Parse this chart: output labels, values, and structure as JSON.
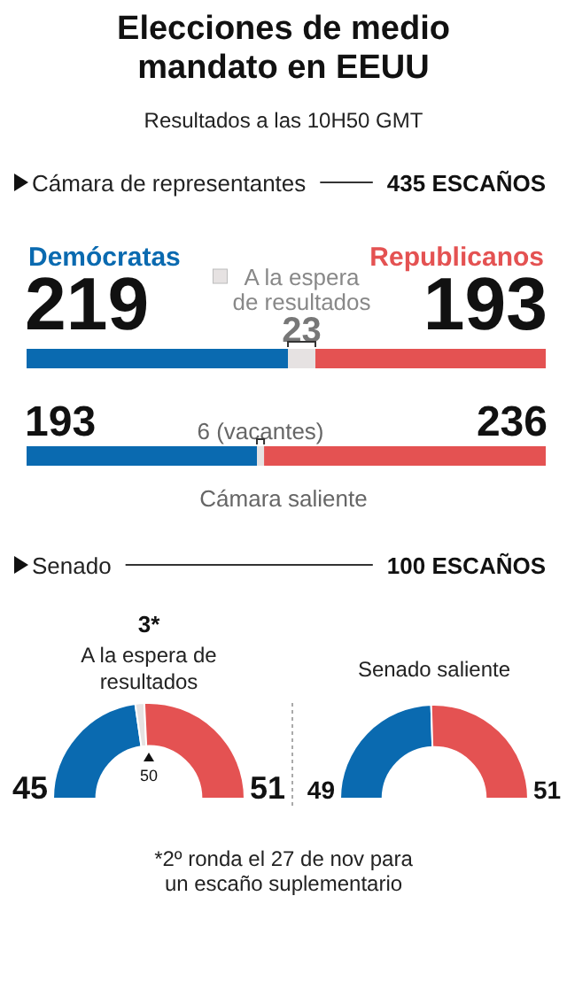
{
  "chart_data": [
    {
      "type": "bar",
      "orientation": "horizontal",
      "stacked": true,
      "data_labels": true,
      "title": "Elecciones de medio mandato en EEUU",
      "subtitle": "Resultados a las 10H50 GMT",
      "annotations": [
        "Cámara de representantes",
        "435 ESCAÑOS"
      ],
      "categories": [
        null
      ],
      "series": [
        {
          "name": "Demócratas",
          "color": "#0a6ab0",
          "values": [
            219
          ]
        },
        {
          "name": "A la espera de resultados",
          "color": "#e6e2e2",
          "values": [
            23
          ]
        },
        {
          "name": "Republicanos",
          "color": "#e45252",
          "values": [
            193
          ]
        }
      ]
    },
    {
      "type": "bar",
      "orientation": "horizontal",
      "stacked": true,
      "xlabel": "Cámara saliente",
      "categories": [
        null
      ],
      "series": [
        {
          "color": "#0a6ab0",
          "values": [
            193
          ],
          "value_labels": [
            "193"
          ]
        },
        {
          "color": "#e6e2e2",
          "values": [
            6
          ],
          "value_labels": [
            "6 (vacantes)"
          ]
        },
        {
          "color": "#e45252",
          "values": [
            236
          ],
          "value_labels": [
            "236"
          ]
        }
      ]
    },
    {
      "type": "donut",
      "categories": [
        null,
        "A la espera de resultados",
        null
      ],
      "values": [
        45,
        3,
        51
      ],
      "colors": [
        "#0a6ab0",
        "#e6e2e2",
        "#e45252"
      ],
      "value_labels": [
        "45",
        "3*",
        "51"
      ],
      "annotations": [
        "Senado",
        "100 ESCAÑOS",
        "50",
        "*2º ronda el 27 de nov para un escaño suplementario"
      ]
    },
    {
      "type": "donut",
      "title": "Senado saliente",
      "categories": [
        null,
        null
      ],
      "values": [
        49,
        51
      ],
      "colors": [
        "#0a6ab0",
        "#e45252"
      ],
      "data_labels": true
    }
  ]
}
